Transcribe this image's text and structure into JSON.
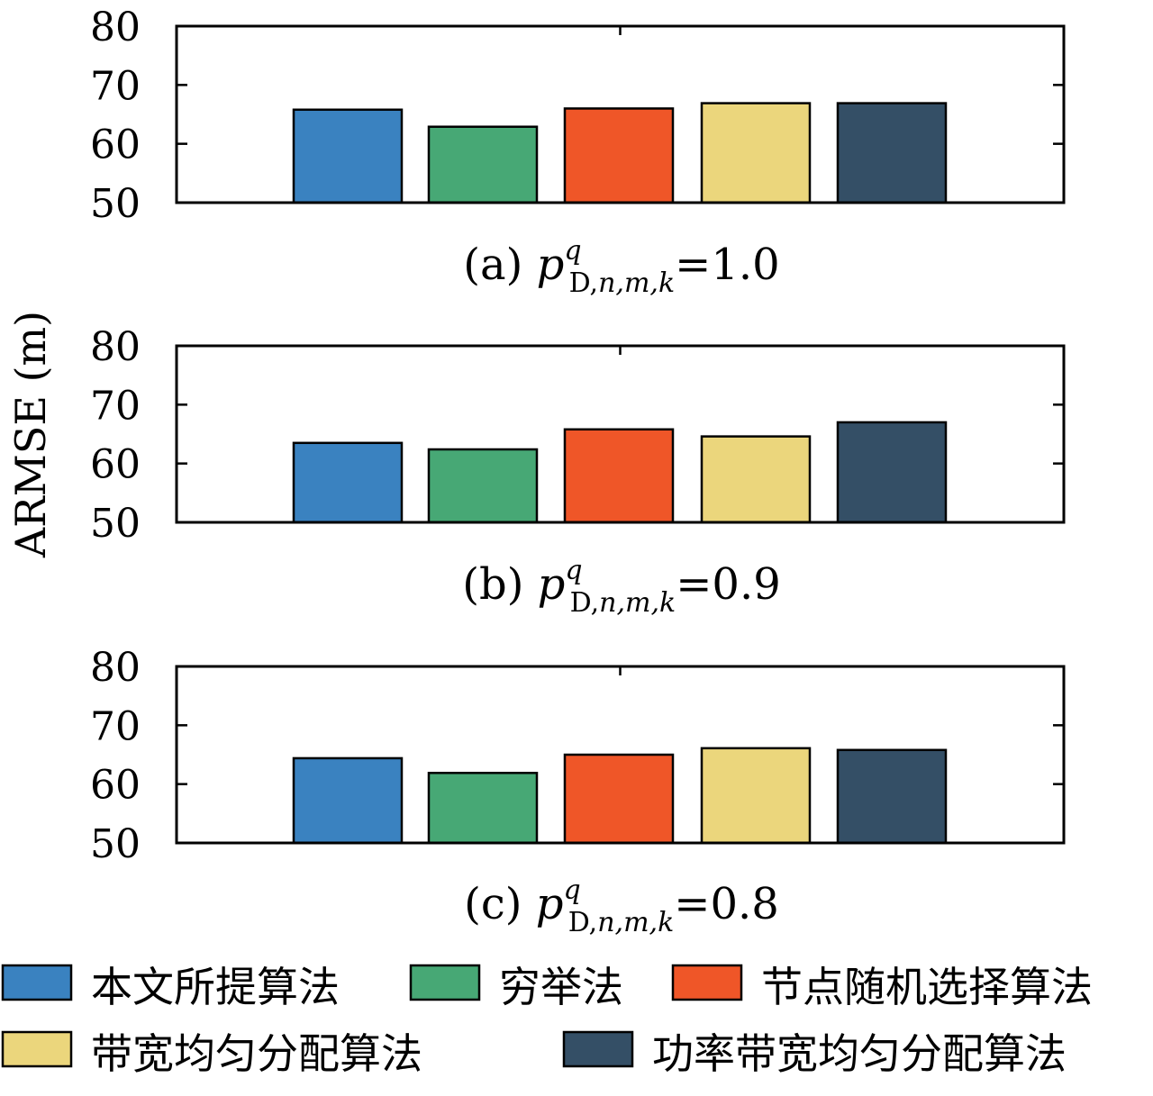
{
  "chart_data": {
    "type": "bar",
    "ylabel": "ARMSE (m)",
    "ylim": [
      50,
      80
    ],
    "yticks": [
      50,
      60,
      70,
      80
    ],
    "grid": false,
    "legend_placement": "bottom",
    "series": [
      {
        "name": "本文所提算法",
        "color": "#3a82c0"
      },
      {
        "name": "穷举法",
        "color": "#47a875"
      },
      {
        "name": "节点随机选择算法",
        "color": "#ef5628"
      },
      {
        "name": "带宽均匀分配算法",
        "color": "#ebd67c"
      },
      {
        "name": "功率带宽均匀分配算法",
        "color": "#344f66"
      }
    ],
    "panels": [
      {
        "label": "(a)",
        "p_value": "1.0",
        "values": [
          65.8,
          62.9,
          66.0,
          66.9,
          66.9
        ]
      },
      {
        "label": "(b)",
        "p_value": "0.9",
        "values": [
          63.5,
          62.4,
          65.8,
          64.6,
          67.0
        ]
      },
      {
        "label": "(c)",
        "p_value": "0.8",
        "values": [
          64.4,
          61.9,
          65.0,
          66.1,
          65.8
        ]
      }
    ],
    "caption_symbol": {
      "base": "p",
      "sup": "q",
      "sub_upright": "D,",
      "sub_italic": "n,m,k",
      "eq": "="
    }
  }
}
